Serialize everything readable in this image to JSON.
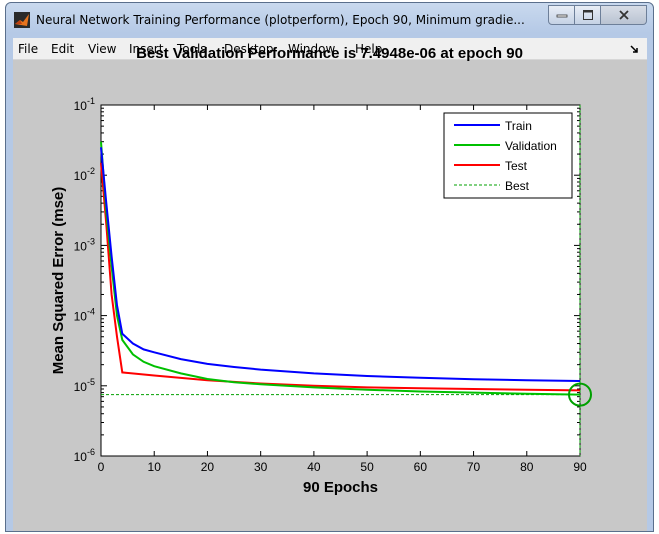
{
  "window": {
    "title": "Neural Network Training Performance (plotperform), Epoch 90, Minimum gradie..."
  },
  "menu": {
    "items": [
      "File",
      "Edit",
      "View",
      "Insert",
      "Tools",
      "Desktop",
      "Window",
      "Help"
    ]
  },
  "colors": {
    "train": "#0000ff",
    "validation": "#00c000",
    "test": "#ff0000",
    "best": "#00a000"
  },
  "chart_data": {
    "type": "line",
    "title": "Best Validation Performance is 7.4948e-06 at epoch 90",
    "xlabel": "90 Epochs",
    "ylabel": "Mean Squared Error  (mse)",
    "xlim": [
      0,
      90
    ],
    "ylim": [
      1e-06,
      0.1
    ],
    "yscale": "log",
    "x_ticks": [
      0,
      10,
      20,
      30,
      40,
      50,
      60,
      70,
      80,
      90
    ],
    "y_ticks": [
      "10^-6",
      "10^-5",
      "10^-4",
      "10^-3",
      "10^-2",
      "10^-1"
    ],
    "legend_position": "top-right",
    "grid": false,
    "series": [
      {
        "name": "Train",
        "x": [
          0,
          1,
          2,
          3,
          4,
          6,
          8,
          10,
          15,
          20,
          25,
          30,
          40,
          50,
          60,
          70,
          80,
          90
        ],
        "y": [
          0.025,
          0.004,
          0.0007,
          0.00014,
          5.5e-05,
          4e-05,
          3.3e-05,
          3e-05,
          2.4e-05,
          2.05e-05,
          1.85e-05,
          1.7e-05,
          1.5e-05,
          1.38e-05,
          1.3e-05,
          1.24e-05,
          1.2e-05,
          1.17e-05
        ]
      },
      {
        "name": "Validation",
        "x": [
          0,
          1,
          2,
          3,
          4,
          6,
          8,
          10,
          15,
          20,
          25,
          30,
          40,
          50,
          60,
          70,
          80,
          90
        ],
        "y": [
          0.03,
          0.003,
          0.0005,
          0.0001,
          4.5e-05,
          2.8e-05,
          2.2e-05,
          1.9e-05,
          1.5e-05,
          1.25e-05,
          1.12e-05,
          1.05e-05,
          9.5e-06,
          8.8e-06,
          8.3e-06,
          8e-06,
          7.7e-06,
          7.4948e-06
        ]
      },
      {
        "name": "Test",
        "x": [
          0,
          1,
          2,
          3,
          4,
          10,
          20,
          30,
          40,
          50,
          60,
          70,
          80,
          90
        ],
        "y": [
          0.015,
          0.002,
          0.0002,
          5e-05,
          1.55e-05,
          1.4e-05,
          1.2e-05,
          1.08e-05,
          1e-05,
          9.5e-06,
          9.2e-06,
          9e-06,
          8.8e-06,
          8.6e-06
        ]
      }
    ],
    "best": {
      "name": "Best",
      "epoch": 90,
      "value": 7.4948e-06
    }
  }
}
